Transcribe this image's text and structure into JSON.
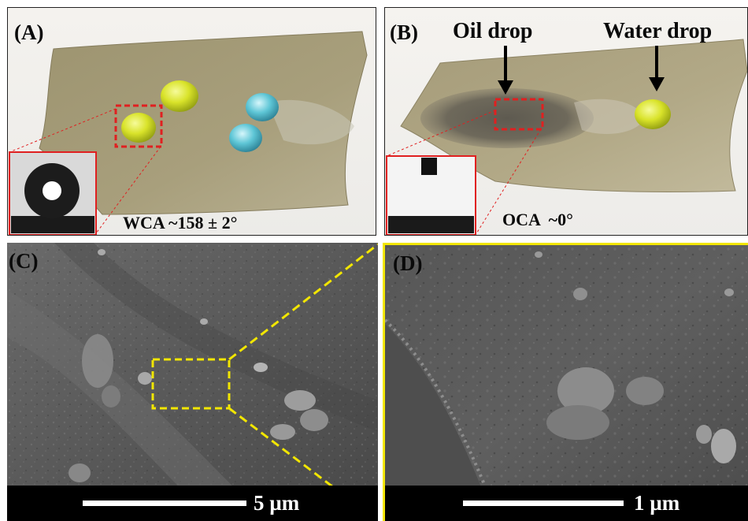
{
  "panels": {
    "a": {
      "label": "(A)",
      "annotation": "WCA ~158 ± 2°"
    },
    "b": {
      "label": "(B)",
      "annotation": "OCA  ~0°",
      "oil_label": "Oil drop",
      "water_label": "Water drop"
    },
    "c": {
      "label": "(C)",
      "scale_label": "5 µm"
    },
    "d": {
      "label": "(D)",
      "scale_label": "1 µm"
    }
  },
  "colors": {
    "fabric": "#a39a78",
    "water_drop_yellow": "#d9e32a",
    "water_drop_blue": "#5ec6d6",
    "zoom_box_red": "#e02020",
    "zoom_box_yellow": "#f2e600",
    "sem_gray": "#5a5a5a"
  }
}
